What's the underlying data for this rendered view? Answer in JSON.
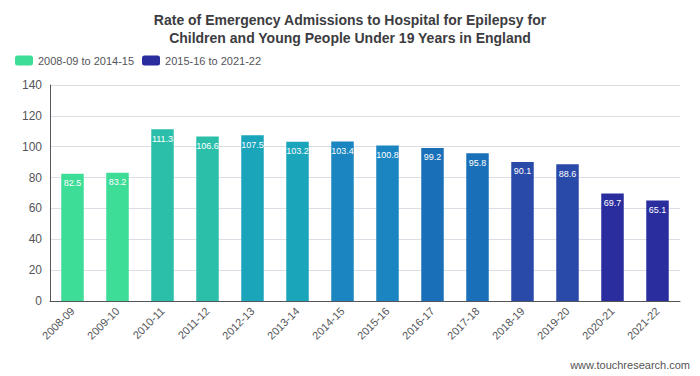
{
  "chart_data": {
    "type": "bar",
    "title": "Rate of Emergency Admissions to Hospital for Epilepsy for\nChildren and Young People Under 19 Years in England",
    "categories": [
      "2008-09",
      "2009-10",
      "2010-11",
      "2011-12",
      "2012-13",
      "2013-14",
      "2014-15",
      "2015-16",
      "2016-17",
      "2017-18",
      "2018-19",
      "2019-20",
      "2020-21",
      "2021-22"
    ],
    "series": [
      {
        "name": "2008-09 to 2014-15",
        "color": "#3ddc97",
        "values": [
          82.5,
          83.2,
          111.3,
          106.6,
          107.5,
          103.2,
          103.4,
          null,
          null,
          null,
          null,
          null,
          null,
          null
        ]
      },
      {
        "name": "2015-16 to 2021-22",
        "color": "#2a2d9e",
        "values": [
          null,
          null,
          null,
          null,
          null,
          null,
          null,
          100.8,
          99.2,
          95.8,
          90.1,
          88.6,
          69.7,
          65.1
        ]
      }
    ],
    "colors": [
      "#3ddc97",
      "#3ddc97",
      "#2bbfaa",
      "#2bbfaa",
      "#1aa5bb",
      "#1aa5bb",
      "#1a85c0",
      "#1a85c0",
      "#1a70b8",
      "#1a70b8",
      "#2a4aaa",
      "#2a4aaa",
      "#2a2d9e",
      "#2a2d9e"
    ],
    "ylim": [
      0,
      140
    ],
    "yticks": [
      0,
      20,
      40,
      60,
      80,
      100,
      120,
      140
    ],
    "grid": true,
    "legend": "upper left",
    "data_labels": true,
    "annotations": [
      {
        "text": "www.touchresearch.com"
      }
    ]
  }
}
